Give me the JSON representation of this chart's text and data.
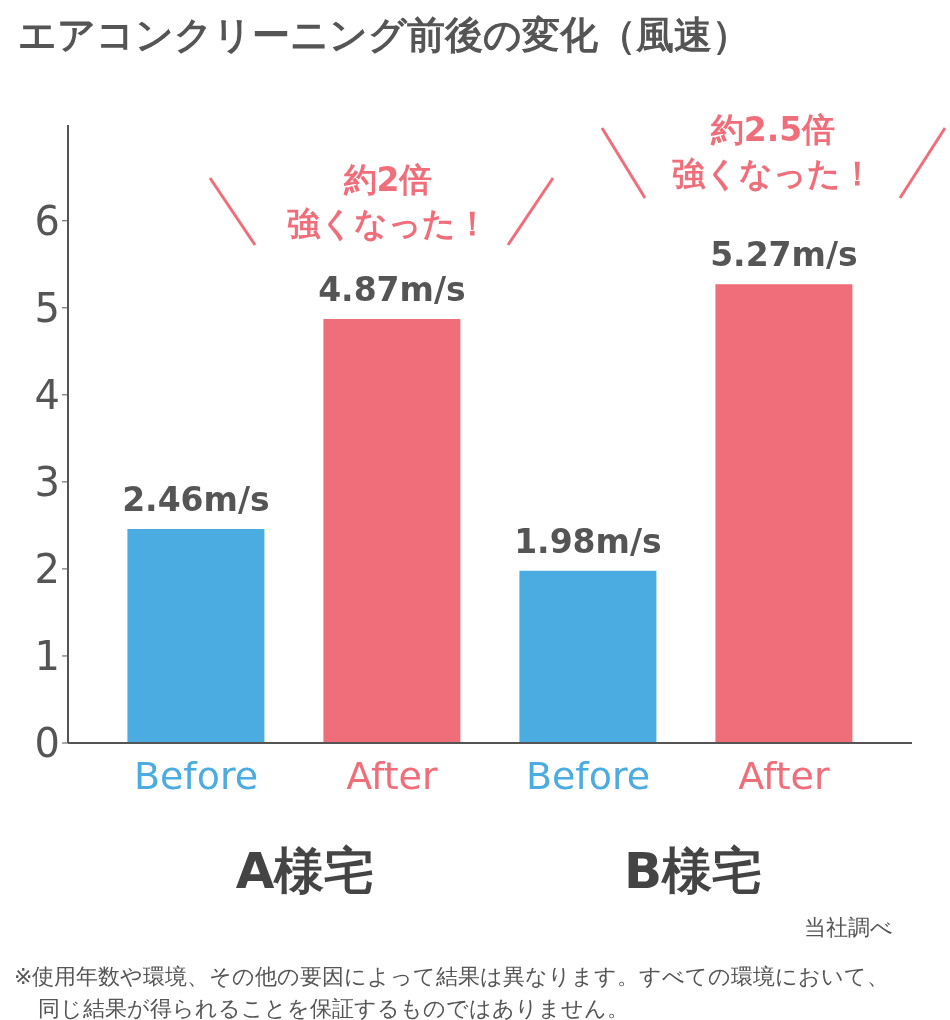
{
  "chart_data": {
    "type": "bar",
    "title": "エアコンクリーニング前後の変化（風速）",
    "categories": [
      "Before",
      "After",
      "Before",
      "After"
    ],
    "values": [
      2.46,
      4.87,
      1.98,
      5.27
    ],
    "colors": [
      "#4aace0",
      "#f06e7a",
      "#4aace0",
      "#f06e7a"
    ],
    "value_labels": [
      "2.46m/s",
      "4.87m/s",
      "1.98m/s",
      "5.27m/s"
    ],
    "ylim": [
      0,
      7.1
    ],
    "yticks": [
      0,
      1,
      2,
      3,
      4,
      5,
      6
    ],
    "annotations": [
      "約2倍",
      "強くなった！",
      "約2.5倍",
      "強くなった！",
      "A様宅",
      "B様宅",
      "当社調べ",
      "※使用年数や環境、その他の要因によって結果は異なります。すべての環境において、同じ結果が得られることを保証するものではありません。"
    ]
  }
}
